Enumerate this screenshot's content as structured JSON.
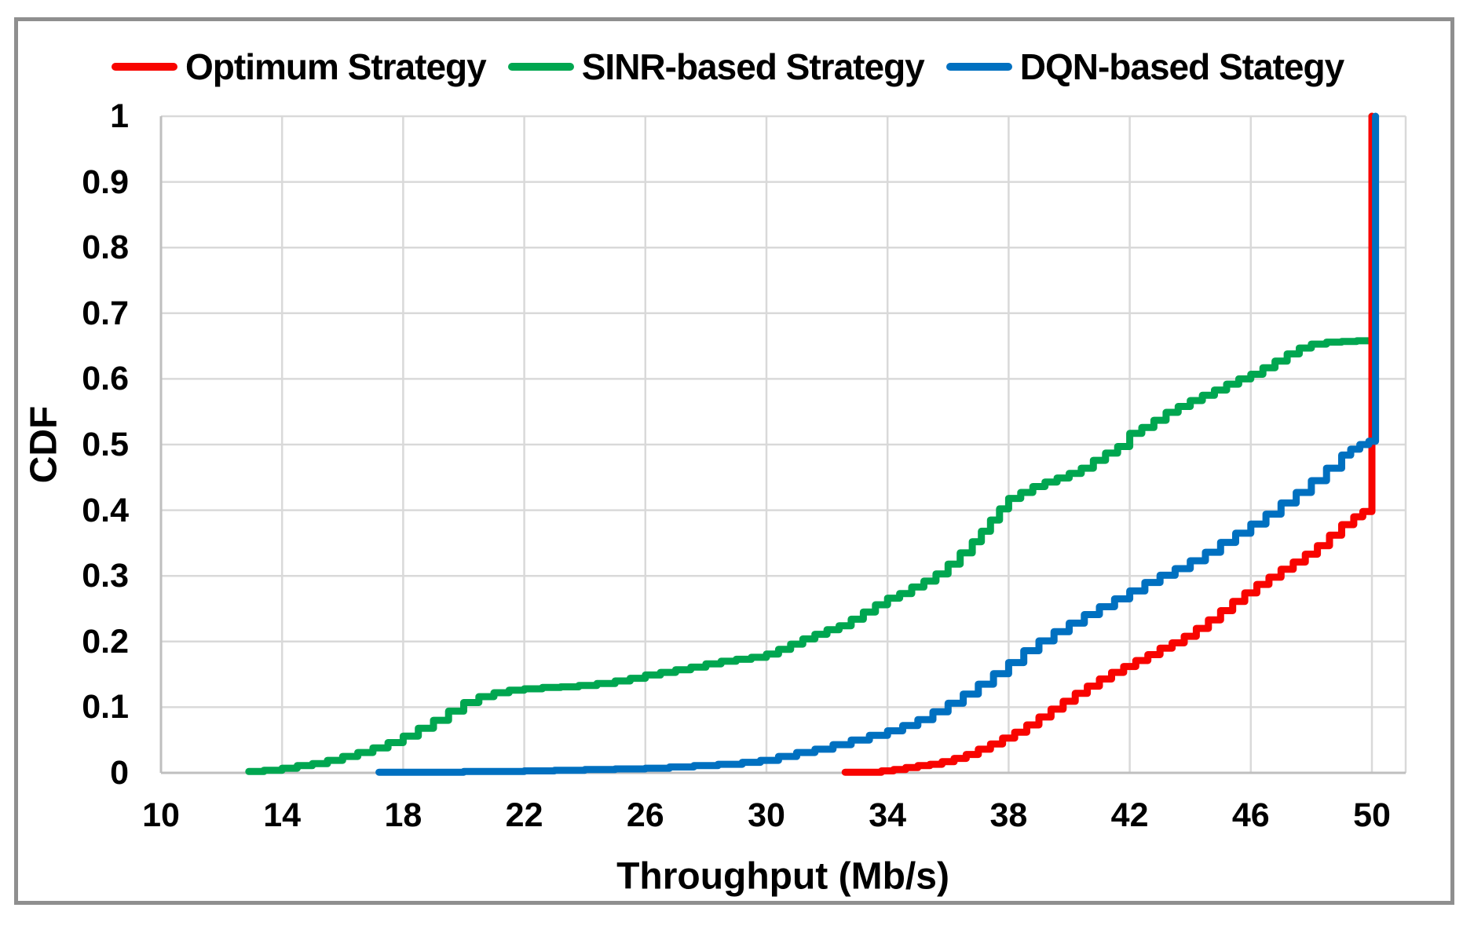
{
  "figure": {
    "background_color": "#ffffff",
    "border_color": "#8f8f8f"
  },
  "legend": {
    "items": [
      {
        "label": "Optimum Strategy",
        "color": "#f80400"
      },
      {
        "label": "SINR-based Strategy",
        "color": "#00a650"
      },
      {
        "label": "DQN-based Stategy",
        "color": "#0070c0"
      }
    ]
  },
  "chart_data": {
    "type": "line",
    "subtype": "cdf-step",
    "title": "",
    "xlabel": "Throughput (Mb/s)",
    "ylabel": "CDF",
    "xlim": [
      10,
      51.2
    ],
    "ylim": [
      0,
      1
    ],
    "x_ticks": [
      10,
      14,
      18,
      22,
      26,
      30,
      34,
      38,
      42,
      46,
      50
    ],
    "y_ticks": [
      0,
      0.1,
      0.2,
      0.3,
      0.4,
      0.5,
      0.6,
      0.7,
      0.8,
      0.9,
      1
    ],
    "y_tick_labels": [
      "0",
      "0.1",
      "0.2",
      "0.3",
      "0.4",
      "0.5",
      "0.6",
      "0.7",
      "0.8",
      "0.9",
      "1"
    ],
    "grid": true,
    "gridline_color": "#d9d9d9",
    "axis_line_color": "#bfbfbf",
    "legend_position": "top",
    "series": [
      {
        "name": "SINR-based Strategy",
        "color": "#00a650",
        "points": [
          [
            12.9,
            0.002
          ],
          [
            13.4,
            0.004
          ],
          [
            14,
            0.007
          ],
          [
            14.5,
            0.011
          ],
          [
            15,
            0.014
          ],
          [
            15.5,
            0.019
          ],
          [
            16,
            0.025
          ],
          [
            16.5,
            0.031
          ],
          [
            17,
            0.038
          ],
          [
            17.5,
            0.046
          ],
          [
            18,
            0.056
          ],
          [
            18.5,
            0.068
          ],
          [
            19,
            0.08
          ],
          [
            19.5,
            0.094
          ],
          [
            20,
            0.107
          ],
          [
            20.5,
            0.116
          ],
          [
            21,
            0.122
          ],
          [
            21.5,
            0.126
          ],
          [
            22,
            0.128
          ],
          [
            22.6,
            0.13
          ],
          [
            23.2,
            0.131
          ],
          [
            23.8,
            0.133
          ],
          [
            24.4,
            0.136
          ],
          [
            25,
            0.14
          ],
          [
            25.5,
            0.144
          ],
          [
            26,
            0.149
          ],
          [
            26.5,
            0.153
          ],
          [
            27,
            0.157
          ],
          [
            27.5,
            0.161
          ],
          [
            28,
            0.166
          ],
          [
            28.5,
            0.17
          ],
          [
            29,
            0.173
          ],
          [
            29.5,
            0.176
          ],
          [
            30,
            0.181
          ],
          [
            30.4,
            0.188
          ],
          [
            30.8,
            0.196
          ],
          [
            31.2,
            0.204
          ],
          [
            31.6,
            0.211
          ],
          [
            32,
            0.218
          ],
          [
            32.4,
            0.224
          ],
          [
            32.8,
            0.234
          ],
          [
            33.2,
            0.245
          ],
          [
            33.6,
            0.256
          ],
          [
            34,
            0.266
          ],
          [
            34.4,
            0.273
          ],
          [
            34.8,
            0.283
          ],
          [
            35.2,
            0.292
          ],
          [
            35.6,
            0.303
          ],
          [
            36,
            0.318
          ],
          [
            36.4,
            0.335
          ],
          [
            36.8,
            0.352
          ],
          [
            37.1,
            0.368
          ],
          [
            37.4,
            0.385
          ],
          [
            37.7,
            0.402
          ],
          [
            38,
            0.418
          ],
          [
            38.4,
            0.427
          ],
          [
            38.8,
            0.436
          ],
          [
            39.2,
            0.443
          ],
          [
            39.6,
            0.449
          ],
          [
            40,
            0.456
          ],
          [
            40.4,
            0.464
          ],
          [
            40.8,
            0.476
          ],
          [
            41.2,
            0.487
          ],
          [
            41.6,
            0.497
          ],
          [
            42,
            0.517
          ],
          [
            42.4,
            0.526
          ],
          [
            42.8,
            0.537
          ],
          [
            43.2,
            0.549
          ],
          [
            43.6,
            0.558
          ],
          [
            44,
            0.567
          ],
          [
            44.4,
            0.575
          ],
          [
            44.8,
            0.583
          ],
          [
            45.2,
            0.592
          ],
          [
            45.6,
            0.6
          ],
          [
            46,
            0.607
          ],
          [
            46.4,
            0.617
          ],
          [
            46.8,
            0.627
          ],
          [
            47.2,
            0.638
          ],
          [
            47.6,
            0.647
          ],
          [
            48,
            0.653
          ],
          [
            48.5,
            0.656
          ],
          [
            49,
            0.657
          ],
          [
            49.5,
            0.658
          ],
          [
            50,
            0.659
          ],
          [
            50,
            1.0
          ]
        ]
      },
      {
        "name": "Optimum Strategy",
        "color": "#f80400",
        "points": [
          [
            32.6,
            0.001
          ],
          [
            33.2,
            0.001
          ],
          [
            33.8,
            0.003
          ],
          [
            34.2,
            0.005
          ],
          [
            34.6,
            0.008
          ],
          [
            35,
            0.011
          ],
          [
            35.4,
            0.013
          ],
          [
            35.8,
            0.017
          ],
          [
            36.2,
            0.022
          ],
          [
            36.6,
            0.028
          ],
          [
            37,
            0.036
          ],
          [
            37.4,
            0.044
          ],
          [
            37.8,
            0.053
          ],
          [
            38.2,
            0.062
          ],
          [
            38.6,
            0.073
          ],
          [
            39,
            0.085
          ],
          [
            39.4,
            0.097
          ],
          [
            39.8,
            0.109
          ],
          [
            40.2,
            0.121
          ],
          [
            40.6,
            0.132
          ],
          [
            41,
            0.143
          ],
          [
            41.4,
            0.153
          ],
          [
            41.8,
            0.162
          ],
          [
            42.2,
            0.171
          ],
          [
            42.6,
            0.18
          ],
          [
            43,
            0.19
          ],
          [
            43.4,
            0.198
          ],
          [
            43.8,
            0.208
          ],
          [
            44.2,
            0.22
          ],
          [
            44.6,
            0.233
          ],
          [
            45,
            0.247
          ],
          [
            45.4,
            0.261
          ],
          [
            45.8,
            0.274
          ],
          [
            46.2,
            0.287
          ],
          [
            46.6,
            0.298
          ],
          [
            47,
            0.31
          ],
          [
            47.4,
            0.321
          ],
          [
            47.8,
            0.333
          ],
          [
            48.2,
            0.346
          ],
          [
            48.6,
            0.362
          ],
          [
            49,
            0.378
          ],
          [
            49.4,
            0.39
          ],
          [
            49.7,
            0.398
          ],
          [
            50,
            0.407
          ],
          [
            50,
            1.0
          ]
        ]
      },
      {
        "name": "DQN-based Stategy",
        "color": "#0070c0",
        "points": [
          [
            17.2,
            0.001
          ],
          [
            18.5,
            0.001
          ],
          [
            20,
            0.002
          ],
          [
            21,
            0.002
          ],
          [
            22,
            0.003
          ],
          [
            23,
            0.004
          ],
          [
            24,
            0.005
          ],
          [
            25,
            0.006
          ],
          [
            26,
            0.007
          ],
          [
            26.8,
            0.009
          ],
          [
            27.6,
            0.011
          ],
          [
            28.4,
            0.013
          ],
          [
            29.2,
            0.016
          ],
          [
            29.8,
            0.019
          ],
          [
            30.4,
            0.025
          ],
          [
            31,
            0.031
          ],
          [
            31.6,
            0.036
          ],
          [
            32.2,
            0.043
          ],
          [
            32.8,
            0.05
          ],
          [
            33.4,
            0.057
          ],
          [
            34,
            0.064
          ],
          [
            34.5,
            0.072
          ],
          [
            35,
            0.081
          ],
          [
            35.5,
            0.093
          ],
          [
            36,
            0.106
          ],
          [
            36.5,
            0.12
          ],
          [
            37,
            0.135
          ],
          [
            37.5,
            0.151
          ],
          [
            38,
            0.168
          ],
          [
            38.5,
            0.186
          ],
          [
            39,
            0.201
          ],
          [
            39.5,
            0.215
          ],
          [
            40,
            0.228
          ],
          [
            40.5,
            0.241
          ],
          [
            41,
            0.253
          ],
          [
            41.5,
            0.265
          ],
          [
            42,
            0.277
          ],
          [
            42.5,
            0.29
          ],
          [
            43,
            0.301
          ],
          [
            43.5,
            0.311
          ],
          [
            44,
            0.323
          ],
          [
            44.5,
            0.336
          ],
          [
            45,
            0.351
          ],
          [
            45.5,
            0.365
          ],
          [
            46,
            0.379
          ],
          [
            46.5,
            0.394
          ],
          [
            47,
            0.411
          ],
          [
            47.5,
            0.427
          ],
          [
            48,
            0.445
          ],
          [
            48.5,
            0.464
          ],
          [
            49,
            0.484
          ],
          [
            49.3,
            0.493
          ],
          [
            49.6,
            0.5
          ],
          [
            49.9,
            0.505
          ],
          [
            50.12,
            0.508
          ],
          [
            50.12,
            1.0
          ]
        ]
      }
    ]
  }
}
